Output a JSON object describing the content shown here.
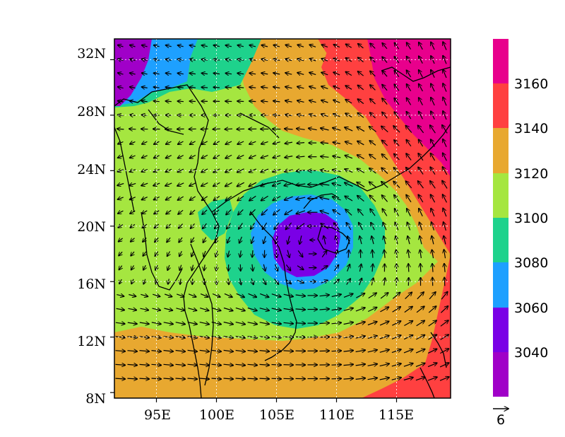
{
  "map": {
    "lat_ticks": [
      "32N",
      "28N",
      "24N",
      "20N",
      "16N",
      "12N",
      "8N"
    ],
    "lon_ticks": [
      "95E",
      "100E",
      "105E",
      "110E",
      "115E"
    ],
    "lon_range": [
      91.5,
      119.5
    ],
    "lat_range": [
      7.6,
      33.5
    ],
    "grid": "dotted",
    "low_center": {
      "lon": 108,
      "lat": 19
    }
  },
  "colorbar": {
    "labels": [
      "3160",
      "3140",
      "3120",
      "3100",
      "3080",
      "3060",
      "3040"
    ],
    "colors": [
      "#e8008c",
      "#ff4040",
      "#e8a830",
      "#a5e640",
      "#1ed28c",
      "#1ea0ff",
      "#7a00e6",
      "#a000c8"
    ]
  },
  "vector_key": {
    "label": "6"
  },
  "colors": {
    "coastline": "#000000",
    "vectors": "#000000",
    "grid": "#ffffff"
  }
}
